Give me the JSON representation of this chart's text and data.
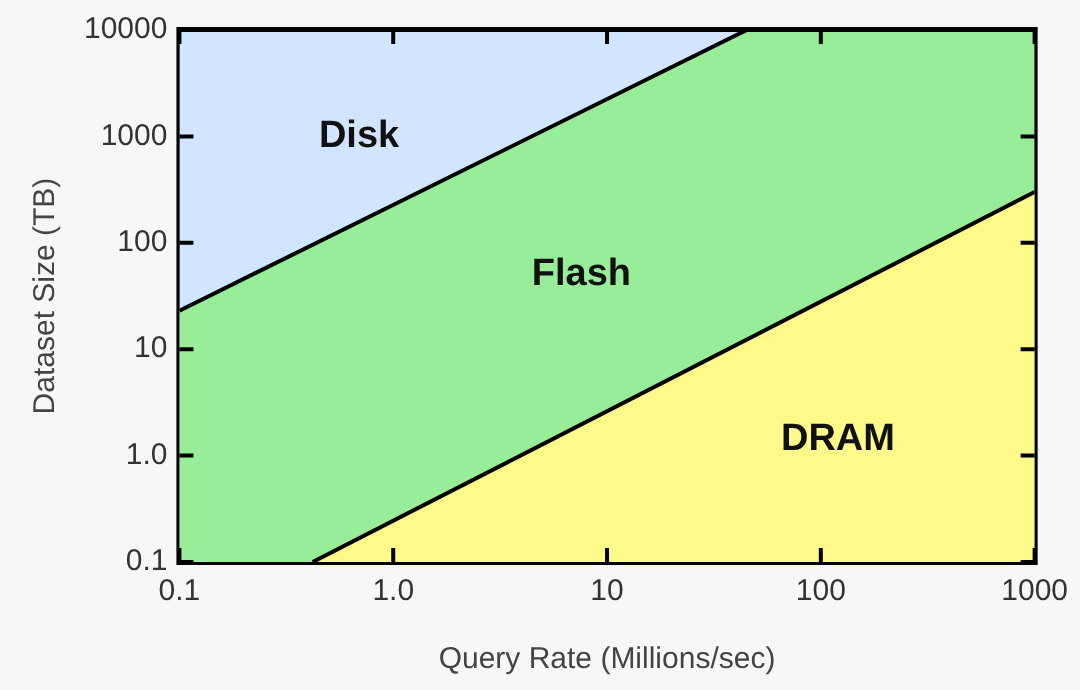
{
  "chart_data": {
    "type": "area",
    "xlabel": "Query Rate (Millions/sec)",
    "ylabel": "Dataset Size (TB)",
    "log": "xy",
    "marker": "none",
    "xlim": [
      0.1,
      1000
    ],
    "ylim": [
      0.1,
      10000
    ],
    "xticks": [
      0.1,
      {
        "value": 1,
        "label": "1.0"
      },
      10,
      100,
      1000
    ],
    "yticks": [
      0.1,
      {
        "value": 1,
        "label": "1.0"
      },
      10,
      100,
      1000,
      10000
    ],
    "series": [
      {
        "name": "DRAM",
        "color": "#fff98a",
        "x": [
          0.42,
          1000
        ],
        "values": [
          0.1,
          300
        ]
      },
      {
        "name": "Flash",
        "color": "#98ee98",
        "x": [
          0.1,
          45,
          1000
        ],
        "values": [
          23,
          10000,
          10000
        ]
      },
      {
        "name": "Disk",
        "color": "#d2e5ff",
        "x": [
          0.1,
          45
        ],
        "values": [
          10000,
          10000
        ]
      }
    ]
  }
}
